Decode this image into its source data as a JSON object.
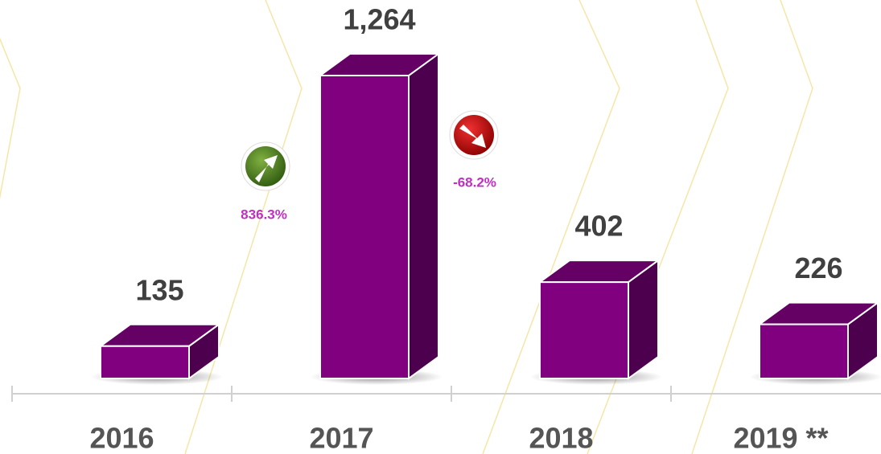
{
  "chart_data": {
    "type": "bar3d",
    "categories": [
      "2016",
      "2017",
      "2018",
      "2019 **"
    ],
    "values": [
      135,
      1264,
      402,
      226
    ],
    "value_labels": [
      "135",
      "1,264",
      "402",
      "226"
    ],
    "color": "#800080",
    "annotations": [
      "836.3%",
      "-68.2%"
    ]
  }
}
